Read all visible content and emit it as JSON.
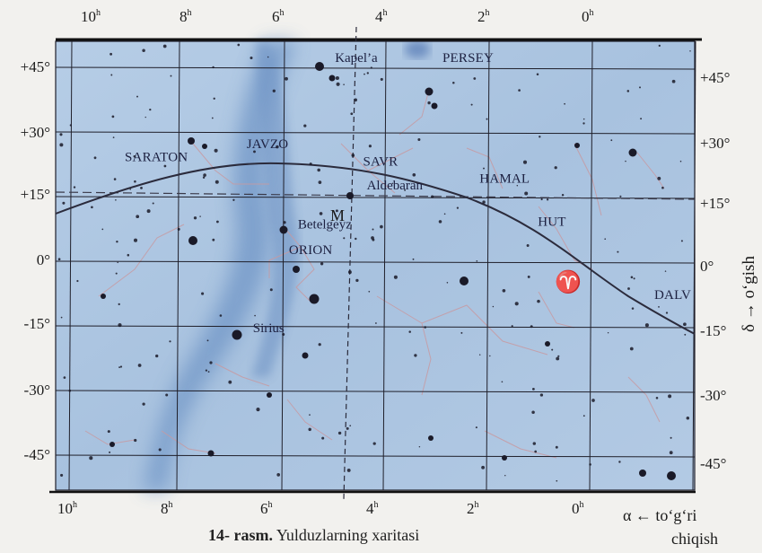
{
  "figure": {
    "caption_number": "14- rasm.",
    "caption_text": "Yulduzlarning xaritasi"
  },
  "axes": {
    "ra_top_ticks": [
      "10h",
      "8h",
      "6h",
      "4h",
      "2h",
      "0h"
    ],
    "ra_bottom_ticks": [
      "10h",
      "8h",
      "6h",
      "4h",
      "2h",
      "0h"
    ],
    "dec_ticks": [
      "+45°",
      "+30°",
      "+15°",
      "0°",
      "-15°",
      "-30°",
      "-45°"
    ],
    "x_axis_label_line1": "α ← to‘g‘ri",
    "x_axis_label_line2": "chiqish",
    "y_axis_label": "δ → o‘gish"
  },
  "constellations": [
    {
      "name": "PERSEY",
      "ra": 3.0,
      "dec": 46
    },
    {
      "name": "SARATON",
      "ra": 9.0,
      "dec": 23
    },
    {
      "name": "JAVZO",
      "ra": 6.7,
      "dec": 26
    },
    {
      "name": "SAVR",
      "ra": 4.5,
      "dec": 22
    },
    {
      "name": "HAMAL",
      "ra": 2.3,
      "dec": 18
    },
    {
      "name": "HUT",
      "ra": 1.2,
      "dec": 8
    },
    {
      "name": "ORION",
      "ra": 5.9,
      "dec": 1.5
    },
    {
      "name": "DALV",
      "ra": -1.0,
      "dec": -9
    }
  ],
  "named_stars": [
    {
      "name": "Kapel’a",
      "ra": 5.2,
      "dec": 46
    },
    {
      "name": "Aldebaran",
      "ra": 4.6,
      "dec": 16.5
    },
    {
      "name": "Betelgeyz",
      "ra": 5.9,
      "dec": 7.4
    },
    {
      "name": "Sirius",
      "ra": 6.75,
      "dec": -16.7
    }
  ],
  "markers": {
    "m_label": "M",
    "vernal_equinox": "♈"
  },
  "colors": {
    "map_bg": "#a9c3e0",
    "milky_way": "#5f86bd",
    "grid": "#1f1f2a",
    "ecliptic": "#2b2b3c",
    "stars": "#1a1a28",
    "figure_lines": "#c79aa2"
  }
}
